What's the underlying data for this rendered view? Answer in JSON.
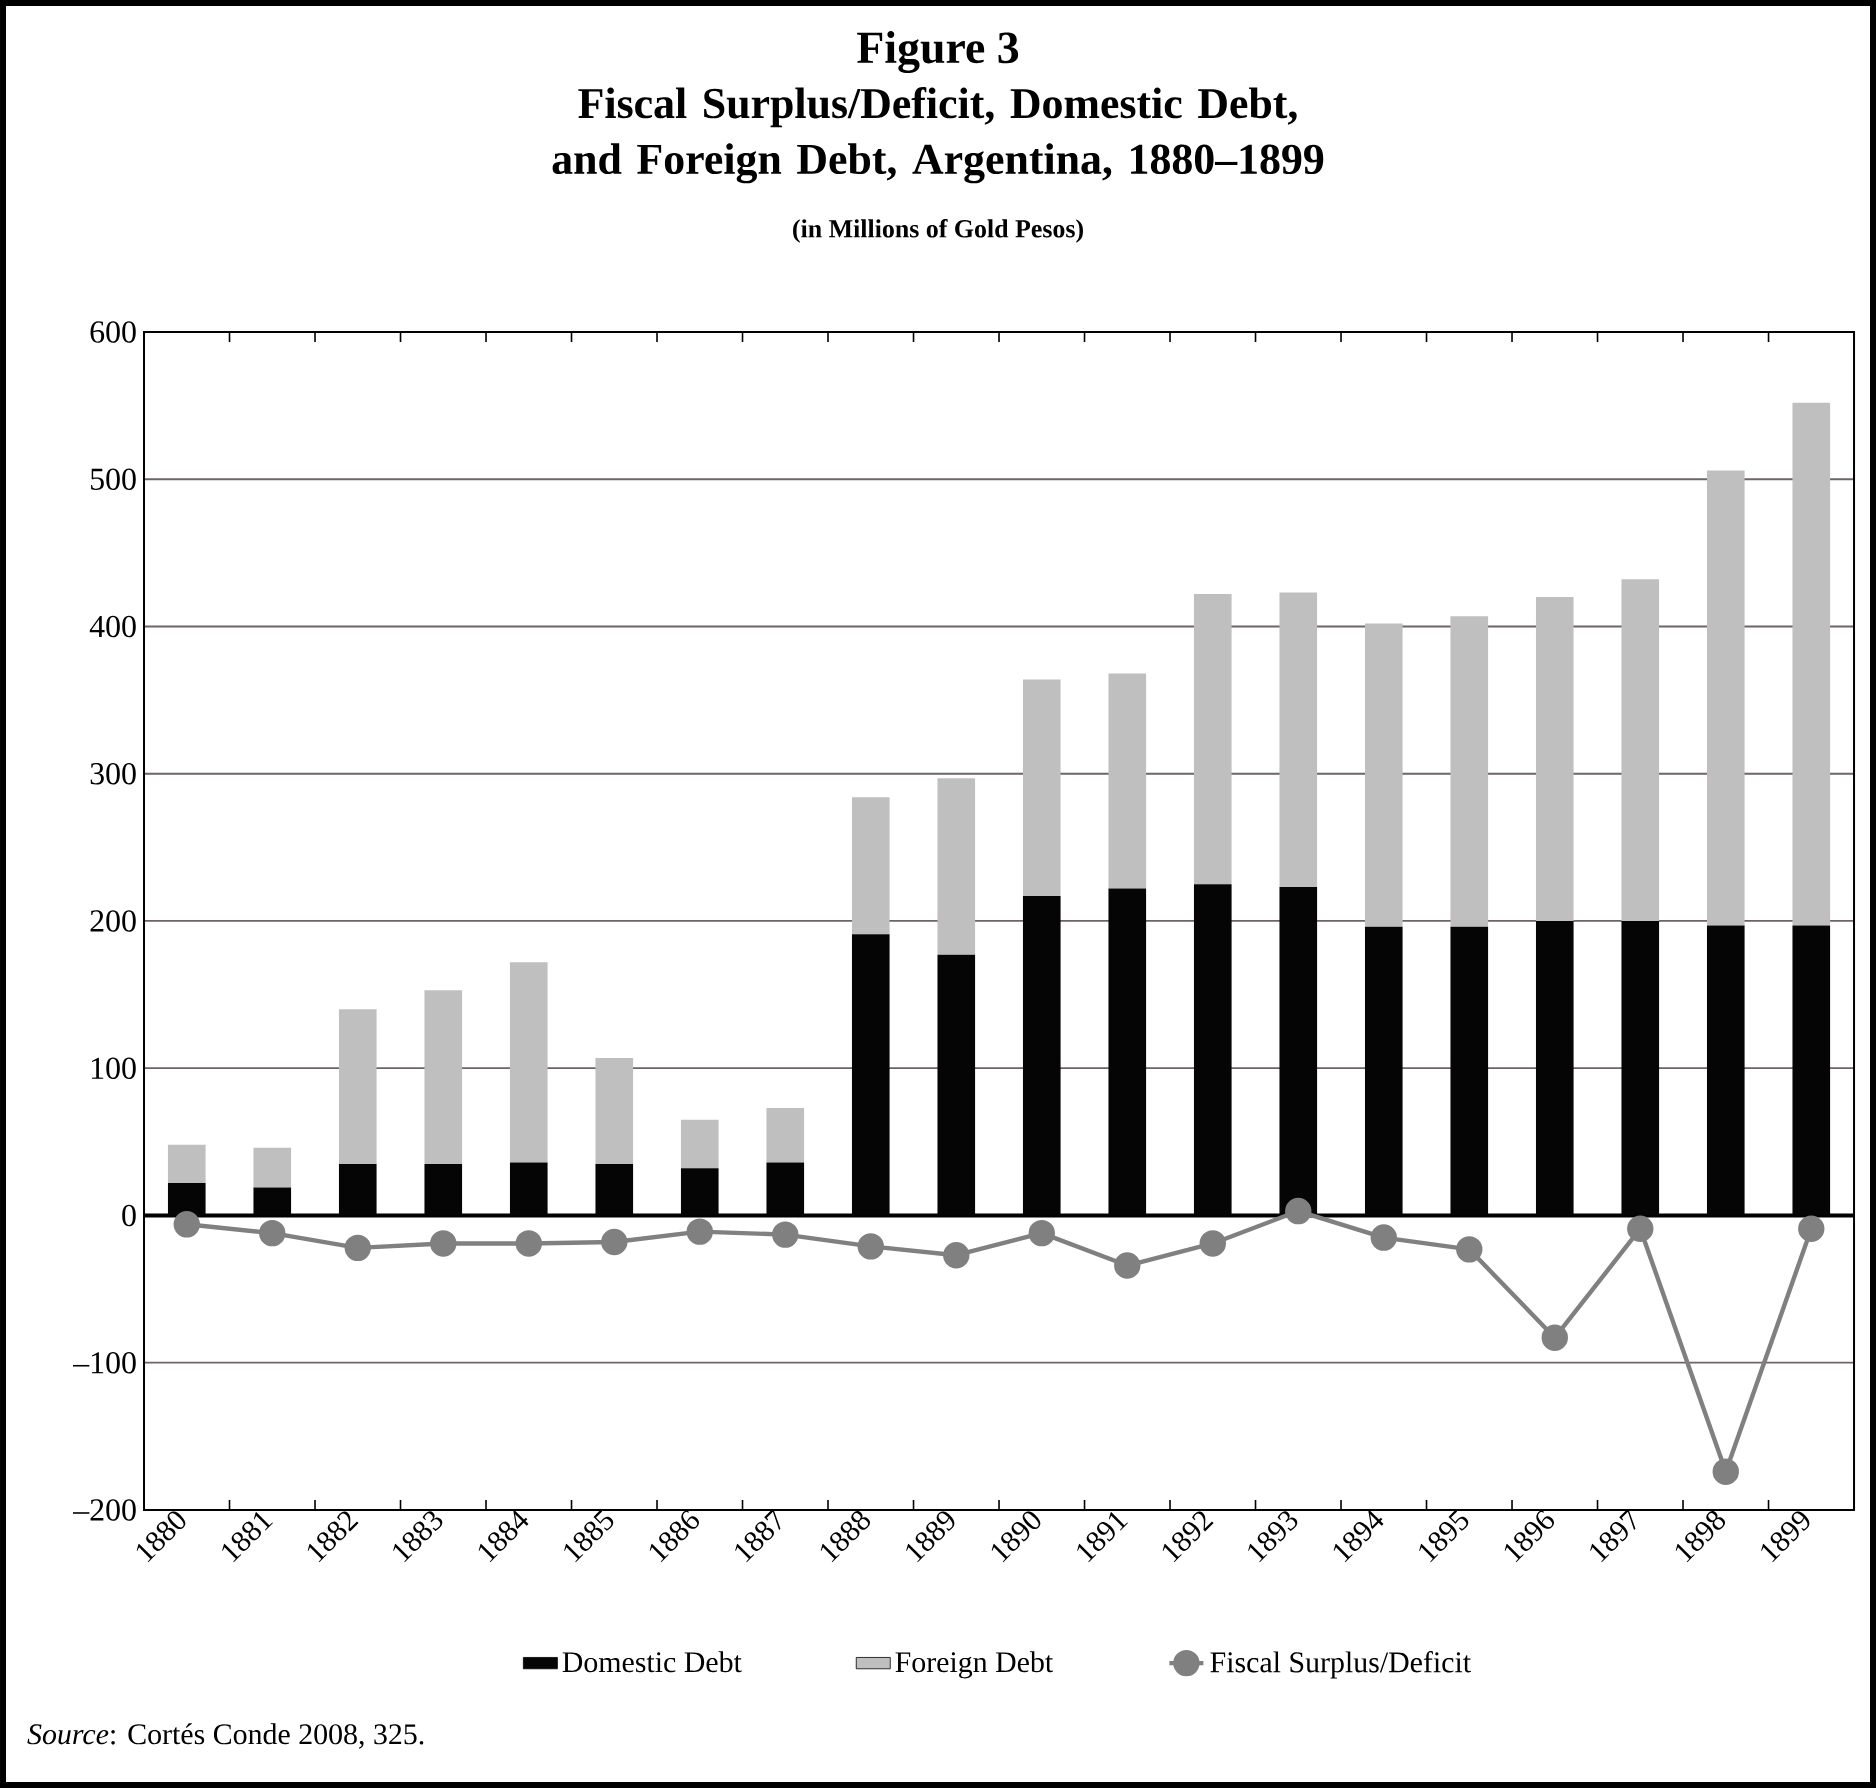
{
  "chart_data": {
    "type": "bar",
    "stacked": true,
    "title": "Figure 3",
    "subtitle": "Fiscal Surplus/Deficit, Domestic Debt, and Foreign Debt, Argentina, 1880–1899",
    "ylabel": "(in Millions of Gold Pesos)",
    "categories": [
      "1880",
      "1881",
      "1882",
      "1883",
      "1884",
      "1885",
      "1886",
      "1887",
      "1888",
      "1889",
      "1890",
      "1891",
      "1892",
      "1893",
      "1894",
      "1895",
      "1896",
      "1897",
      "1898",
      "1899"
    ],
    "series": [
      {
        "name": "Domestic Debt",
        "color": "#050505",
        "values": [
          22,
          19,
          35,
          35,
          36,
          35,
          32,
          36,
          191,
          177,
          217,
          222,
          225,
          223,
          196,
          196,
          200,
          200,
          197,
          197
        ]
      },
      {
        "name": "Foreign Debt",
        "color": "#bfbfbf",
        "values": [
          26,
          27,
          105,
          118,
          136,
          72,
          33,
          37,
          93,
          120,
          147,
          146,
          197,
          200,
          206,
          211,
          220,
          232,
          309,
          355
        ]
      },
      {
        "name": "Fiscal Surplus/Deficit",
        "type": "line",
        "color": "#808080",
        "marker": "circle",
        "values": [
          -6,
          -12,
          -22,
          -19,
          -19,
          -18,
          -11,
          -13,
          -21,
          -27,
          -12,
          -34,
          -19,
          3,
          -15,
          -23,
          -83,
          -9,
          -174,
          -9
        ]
      }
    ],
    "ylim": [
      -200,
      600
    ],
    "yticks": [
      {
        "value": -200,
        "label": "–200"
      },
      {
        "value": -100,
        "label": "–100"
      },
      0,
      100,
      200,
      300,
      400,
      500,
      600
    ],
    "grid": "y",
    "legend": "bottom",
    "annotations": [
      "*Source*: Cortés Conde 2008, 325."
    ]
  }
}
